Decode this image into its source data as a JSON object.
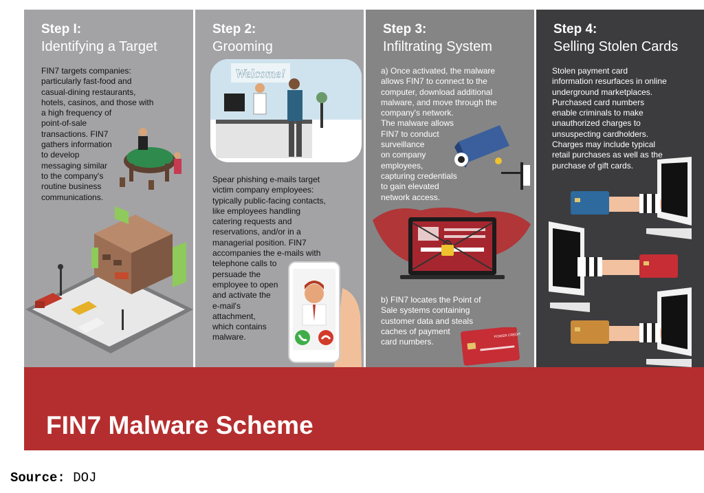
{
  "steps": [
    {
      "label": "Step I:",
      "title": "Identifying a Target",
      "text": "FIN7 targets companies:\nparticularly fast-food and\ncasual-dining restaurants,\nhotels, casinos, and those with\na high frequency of\npoint-of-sale\ntransactions. FIN7\ngathers information\nto develop\nmessaging similar\nto the company's\nroutine business\ncommunications."
    },
    {
      "label": "Step 2:",
      "title": "Grooming",
      "sign": "Welcome!",
      "text": "Spear phishing e-mails target\nvictim company employees:\ntypically public-facing contacts,\nlike employees handling\ncatering requests and\nreservations, and/or in a\nmanagerial position. FIN7\naccompanies the e-mails with\ntelephone calls to\npersuade the\nemployee to open\nand activate the\ne-mail's\nattachment,\nwhich contains\nmalware."
    },
    {
      "label": "Step 3:",
      "title": "Infiltrating System",
      "text_a": "a) Once activated, the malware\nallows FIN7 to connect to the\ncomputer, download additional\nmalware, and move through the\ncompany's network.\nThe malware allows\nFIN7 to conduct\nsurveillance\non company\nemployees,\ncapturing credentials\nto gain elevated\nnetwork access.",
      "text_b": "b) FIN7 locates the Point of\nSale systems containing\ncustomer data and steals\ncaches of payment\ncard numbers."
    },
    {
      "label": "Step 4:",
      "title": "Selling Stolen Cards",
      "text": "Stolen payment card\ninformation resurfaces in online\nunderground marketplaces.\nPurchased card numbers\nenable criminals to make\nunauthorized charges to\nunsuspecting cardholders.\nCharges may include typical\nretail purchases as well as the\npurchase of gift cards."
    }
  ],
  "banner": {
    "title": "FIN7 Malware Scheme"
  },
  "source": {
    "label": "Source:",
    "value": "DOJ"
  },
  "colors": {
    "panel_light": "#a3a3a5",
    "panel_mid": "#858586",
    "panel_dark": "#3c3c3e",
    "banner": "#b52e2f"
  },
  "icons": [
    "casino-table-illustration",
    "restaurant-building-illustration",
    "hotel-reception-illustration",
    "smartphone-call-illustration",
    "security-camera-illustration",
    "locked-laptop-illustration",
    "credit-card-illustration",
    "monitor-hand-card-illustration"
  ]
}
